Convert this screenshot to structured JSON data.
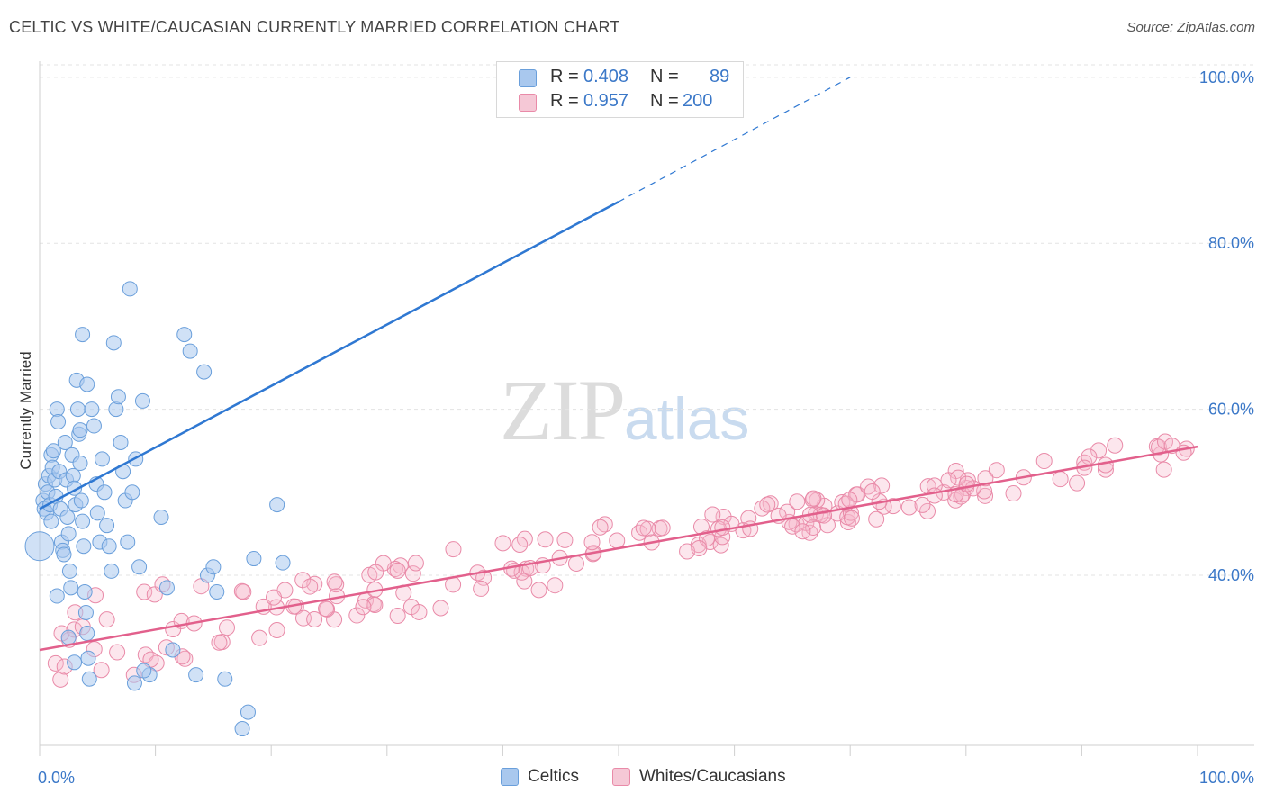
{
  "title": "CELTIC VS WHITE/CAUCASIAN CURRENTLY MARRIED CORRELATION CHART",
  "source": "Source: ZipAtlas.com",
  "watermark": {
    "zip": "ZIP",
    "atlas": "atlas"
  },
  "legend": {
    "rows": [
      {
        "r_label": "R =",
        "r_value": "0.408",
        "n_label": "N =",
        "n_value": "89",
        "color": "#a9c8ee"
      },
      {
        "r_label": "R =",
        "r_value": "0.957",
        "n_label": "N =",
        "n_value": "200",
        "color": "#f5b8cb"
      }
    ]
  },
  "bottom_legend": [
    {
      "label": "Celtics",
      "color": "#a9c8ee"
    },
    {
      "label": "Whites/Caucasians",
      "color": "#f5b8cb"
    }
  ],
  "chart_data": {
    "type": "scatter",
    "title": "CELTIC VS WHITE/CAUCASIAN CURRENTLY MARRIED CORRELATION CHART",
    "xlabel": "",
    "ylabel": "Currently Married",
    "xlim": [
      0,
      100
    ],
    "ylim": [
      19.5,
      101.5
    ],
    "x_tick_labels": [
      {
        "value": 0,
        "label": "0.0%"
      },
      {
        "value": 100,
        "label": "100.0%"
      }
    ],
    "y_tick_labels": [
      {
        "value": 40,
        "label": "40.0%"
      },
      {
        "value": 60,
        "label": "60.0%"
      },
      {
        "value": 80,
        "label": "80.0%"
      },
      {
        "value": 100,
        "label": "100.0%"
      }
    ],
    "grid": true,
    "series": [
      {
        "name": "Celtics",
        "color": "#a9c8ee",
        "stroke": "#6a9fdb",
        "trend": {
          "x0": 0.0,
          "y0": 48.0,
          "x1": 50.0,
          "y1": 85.0,
          "dash_to_x": 70.0,
          "dash_to_y": 100.0,
          "color": "#2f78d2"
        },
        "points": [
          [
            0.3,
            49
          ],
          [
            0.4,
            48
          ],
          [
            0.5,
            51
          ],
          [
            0.6,
            47.5
          ],
          [
            0.7,
            50
          ],
          [
            0.8,
            52
          ],
          [
            0.9,
            48.5
          ],
          [
            1.0,
            54.5
          ],
          [
            1.0,
            46.5
          ],
          [
            1.1,
            53
          ],
          [
            1.2,
            55
          ],
          [
            1.3,
            51.5
          ],
          [
            1.4,
            49.5
          ],
          [
            1.5,
            60
          ],
          [
            1.6,
            58.5
          ],
          [
            1.7,
            52.5
          ],
          [
            1.8,
            48
          ],
          [
            1.9,
            44
          ],
          [
            2.0,
            43
          ],
          [
            2.1,
            42.5
          ],
          [
            2.2,
            56
          ],
          [
            2.3,
            51.5
          ],
          [
            2.4,
            47
          ],
          [
            2.5,
            45
          ],
          [
            2.6,
            40.5
          ],
          [
            2.7,
            38.5
          ],
          [
            2.8,
            54.5
          ],
          [
            2.9,
            52
          ],
          [
            3.0,
            50.5
          ],
          [
            3.1,
            48.5
          ],
          [
            3.2,
            63.5
          ],
          [
            3.3,
            60
          ],
          [
            3.4,
            57
          ],
          [
            3.5,
            53.5
          ],
          [
            3.6,
            49
          ],
          [
            3.7,
            46.5
          ],
          [
            3.8,
            43.5
          ],
          [
            3.9,
            38
          ],
          [
            4.0,
            35.5
          ],
          [
            4.1,
            33
          ],
          [
            4.2,
            30
          ],
          [
            4.3,
            27.5
          ],
          [
            1.5,
            37.5
          ],
          [
            2.5,
            32.5
          ],
          [
            3.0,
            29.5
          ],
          [
            3.5,
            57.5
          ],
          [
            3.7,
            69
          ],
          [
            4.1,
            63
          ],
          [
            4.5,
            60
          ],
          [
            4.7,
            58
          ],
          [
            4.9,
            51
          ],
          [
            5.0,
            47.5
          ],
          [
            5.2,
            44
          ],
          [
            5.4,
            54
          ],
          [
            5.6,
            50
          ],
          [
            5.8,
            46
          ],
          [
            6.0,
            43.5
          ],
          [
            6.2,
            40.5
          ],
          [
            6.4,
            68
          ],
          [
            6.6,
            60
          ],
          [
            6.8,
            61.5
          ],
          [
            7.0,
            56
          ],
          [
            7.2,
            52.5
          ],
          [
            7.4,
            49
          ],
          [
            7.6,
            44
          ],
          [
            7.8,
            74.5
          ],
          [
            8.0,
            50
          ],
          [
            8.3,
            54
          ],
          [
            8.6,
            41
          ],
          [
            8.9,
            61
          ],
          [
            9.5,
            28
          ],
          [
            9.0,
            28.5
          ],
          [
            10.5,
            47
          ],
          [
            11.0,
            38.5
          ],
          [
            11.5,
            31
          ],
          [
            8.2,
            27
          ],
          [
            12.5,
            69
          ],
          [
            13.0,
            67
          ],
          [
            13.5,
            28
          ],
          [
            14.2,
            64.5
          ],
          [
            14.5,
            40
          ],
          [
            15.0,
            41
          ],
          [
            15.3,
            38
          ],
          [
            16.0,
            27.5
          ],
          [
            17.5,
            21.5
          ],
          [
            18.0,
            23.5
          ],
          [
            18.5,
            42
          ],
          [
            20.5,
            48.5
          ],
          [
            21.0,
            41.5
          ]
        ]
      },
      {
        "name": "Whites/Caucasians",
        "color": "#f5b8cb",
        "stroke": "#e98aa8",
        "trend": {
          "x0": 0.0,
          "y0": 31.0,
          "x1": 100.0,
          "y1": 55.5,
          "color": "#e2608c"
        },
        "points": []
      }
    ]
  }
}
